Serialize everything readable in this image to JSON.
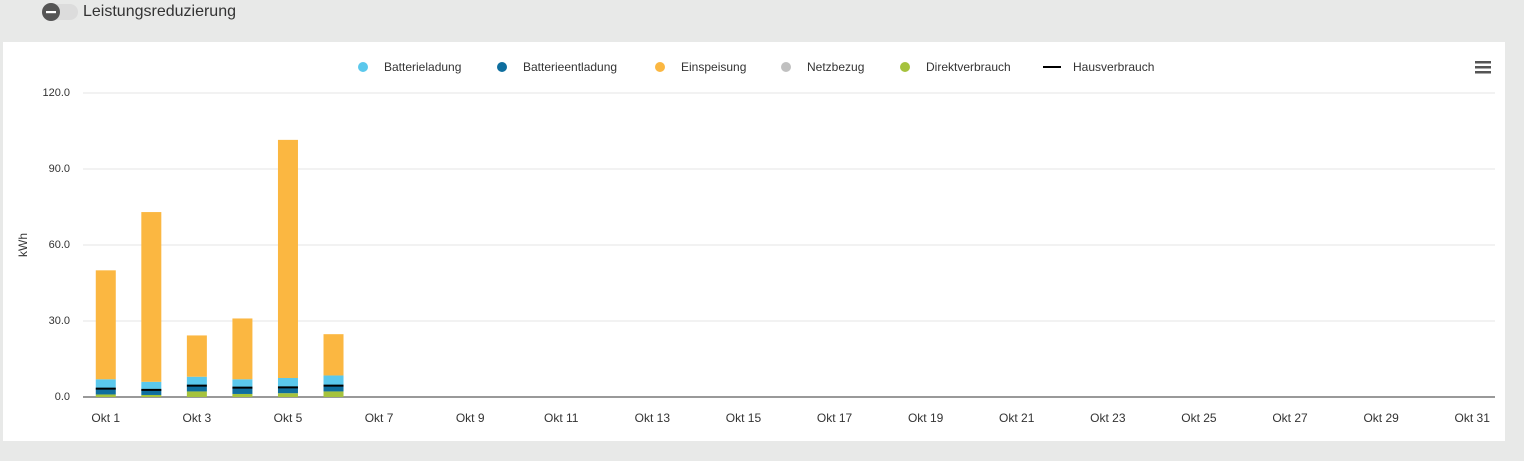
{
  "toggle": {
    "label": "Leistungsreduzierung"
  },
  "chart_data": {
    "type": "bar",
    "stacked": true,
    "y_label": "kWh",
    "categories": [
      "Okt 1",
      null,
      "Okt 3",
      null,
      "Okt 5",
      null,
      "Okt 7",
      null,
      "Okt 9",
      null,
      "Okt 11",
      null,
      "Okt 13",
      null,
      "Okt 15",
      null,
      "Okt 17",
      null,
      "Okt 19",
      null,
      "Okt 21",
      null,
      "Okt 23",
      null,
      "Okt 25",
      null,
      "Okt 27",
      null,
      "Okt 29",
      null,
      "Okt 31"
    ],
    "series": [
      {
        "name": "Batterieladung",
        "color": "#5bc8ec",
        "values": [
          3.5,
          3.0,
          3.8,
          3.3,
          3.7,
          4.0,
          null,
          null,
          null,
          null,
          null,
          null,
          null,
          null,
          null,
          null,
          null,
          null,
          null,
          null,
          null,
          null,
          null,
          null,
          null,
          null,
          null,
          null,
          null,
          null,
          null
        ]
      },
      {
        "name": "Batterieentladung",
        "color": "#0e6e9e",
        "values": [
          2.5,
          2.2,
          2.0,
          2.5,
          2.3,
          2.3,
          null,
          null,
          null,
          null,
          null,
          null,
          null,
          null,
          null,
          null,
          null,
          null,
          null,
          null,
          null,
          null,
          null,
          null,
          null,
          null,
          null,
          null,
          null,
          null,
          null
        ]
      },
      {
        "name": "Einspeisung",
        "color": "#fbb741",
        "values": [
          43,
          67,
          16.3,
          24,
          94,
          16.3,
          null,
          null,
          null,
          null,
          null,
          null,
          null,
          null,
          null,
          null,
          null,
          null,
          null,
          null,
          null,
          null,
          null,
          null,
          null,
          null,
          null,
          null,
          null,
          null,
          null
        ]
      },
      {
        "name": "Netzbezug",
        "color": "#c0c0c0",
        "values": [
          0,
          0,
          0,
          0,
          0,
          0,
          null,
          null,
          null,
          null,
          null,
          null,
          null,
          null,
          null,
          null,
          null,
          null,
          null,
          null,
          null,
          null,
          null,
          null,
          null,
          null,
          null,
          null,
          null,
          null,
          null
        ]
      },
      {
        "name": "Direktverbrauch",
        "color": "#a5c23d",
        "values": [
          1.0,
          0.8,
          2.2,
          1.2,
          1.5,
          2.2,
          null,
          null,
          null,
          null,
          null,
          null,
          null,
          null,
          null,
          null,
          null,
          null,
          null,
          null,
          null,
          null,
          null,
          null,
          null,
          null,
          null,
          null,
          null,
          null,
          null
        ]
      },
      {
        "name": "Hausverbrauch",
        "color": "#000000",
        "type": "line",
        "values": [
          3.3,
          2.8,
          4.5,
          3.7,
          3.8,
          4.5,
          null,
          null,
          null,
          null,
          null,
          null,
          null,
          null,
          null,
          null,
          null,
          null,
          null,
          null,
          null,
          null,
          null,
          null,
          null,
          null,
          null,
          null,
          null,
          null,
          null
        ]
      }
    ],
    "ylim": [
      0,
      120
    ],
    "yticks": [
      {
        "value": 0,
        "label": "0.0"
      },
      {
        "value": 30,
        "label": "30.0"
      },
      {
        "value": 60,
        "label": "60.0"
      },
      {
        "value": 90,
        "label": "90.0"
      },
      {
        "value": 120,
        "label": "120.0"
      }
    ],
    "grid": true,
    "legend": "top"
  }
}
